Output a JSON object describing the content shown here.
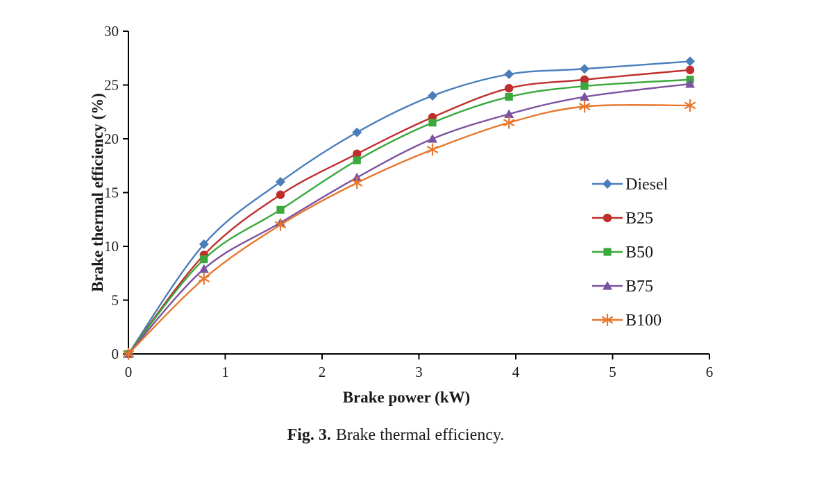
{
  "figure": {
    "caption_label": "Fig. 3.",
    "caption_text": "Brake thermal efficiency."
  },
  "chart_data": {
    "type": "line",
    "title": "",
    "xlabel": "Brake power (kW)",
    "ylabel": "Brake thermal efficiency (%)",
    "xlim": [
      0,
      6
    ],
    "ylim": [
      0,
      30
    ],
    "x_ticks": [
      0,
      1,
      2,
      3,
      4,
      5,
      6
    ],
    "y_ticks": [
      0,
      5,
      10,
      15,
      20,
      25,
      30
    ],
    "grid": false,
    "legend_position": "inside-right",
    "x": [
      0,
      0.78,
      1.57,
      2.36,
      3.14,
      3.93,
      4.71,
      5.8
    ],
    "series": [
      {
        "name": "Diesel",
        "color": "#4A7EBB",
        "marker": "diamond",
        "values": [
          0,
          10.2,
          16.0,
          20.6,
          24.0,
          26.0,
          26.5,
          27.2
        ]
      },
      {
        "name": "B25",
        "color": "#BE2E2C",
        "marker": "circle",
        "values": [
          0,
          9.2,
          14.8,
          18.6,
          22.0,
          24.7,
          25.5,
          26.4
        ]
      },
      {
        "name": "B50",
        "color": "#3AA83D",
        "marker": "square",
        "values": [
          0,
          8.8,
          13.4,
          18.0,
          21.5,
          23.9,
          24.9,
          25.5
        ]
      },
      {
        "name": "B75",
        "color": "#7A52A0",
        "marker": "triangle",
        "values": [
          0,
          7.9,
          12.2,
          16.4,
          20.0,
          22.3,
          23.9,
          25.1
        ]
      },
      {
        "name": "B100",
        "color": "#E8772D",
        "marker": "asterisk",
        "values": [
          0,
          7.0,
          12.0,
          15.9,
          19.0,
          21.5,
          23.0,
          23.1
        ]
      }
    ]
  }
}
